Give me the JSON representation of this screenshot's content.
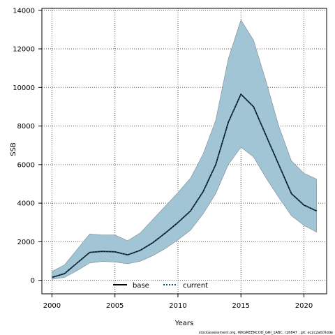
{
  "chart_data": {
    "type": "area",
    "xlabel": "Years",
    "ylabel": "SSB",
    "xlim": [
      1999.2,
      2021.8
    ],
    "ylim": [
      -700,
      14100
    ],
    "x_ticks": [
      2000,
      2005,
      2010,
      2015,
      2020
    ],
    "y_ticks": [
      0,
      2000,
      4000,
      6000,
      8000,
      10000,
      12000,
      14000
    ],
    "grid": true,
    "legend_position": "bottom-center",
    "colors": {
      "band_fill": "#a2c5d6",
      "band_stroke": "#7a8a90",
      "current_line": "#000000",
      "current_dot": "#1d4f6e",
      "base_line": "#000000",
      "grid": "#555555"
    },
    "x": [
      2000,
      2001,
      2002,
      2003,
      2004,
      2005,
      2006,
      2007,
      2008,
      2009,
      2010,
      2011,
      2012,
      2013,
      2014,
      2015,
      2016,
      2017,
      2018,
      2019,
      2020,
      2021
    ],
    "series": [
      {
        "name": "base",
        "style": "solid",
        "values": [
          150,
          350,
          900,
          1450,
          1500,
          1480,
          1320,
          1550,
          1950,
          2450,
          3000,
          3600,
          4600,
          6000,
          8200,
          9650,
          9000,
          7500,
          6000,
          4500,
          3900,
          3600
        ]
      },
      {
        "name": "current",
        "style": "dotted",
        "values": [
          150,
          350,
          900,
          1450,
          1500,
          1480,
          1320,
          1550,
          1950,
          2450,
          3000,
          3600,
          4600,
          6000,
          8200,
          9650,
          9000,
          7500,
          6000,
          4500,
          3900,
          3600
        ]
      }
    ],
    "band": {
      "upper": [
        450,
        800,
        1600,
        2400,
        2350,
        2350,
        2050,
        2450,
        3150,
        3850,
        4550,
        5300,
        6550,
        8300,
        11500,
        13500,
        12450,
        10300,
        8000,
        6200,
        5550,
        5250
      ],
      "lower": [
        50,
        150,
        500,
        900,
        980,
        950,
        860,
        990,
        1280,
        1650,
        2100,
        2600,
        3450,
        4500,
        6000,
        6900,
        6400,
        5300,
        4300,
        3350,
        2850,
        2500
      ]
    }
  },
  "legend": {
    "base_label": "base",
    "current_label": "current"
  },
  "axes": {
    "x_title": "Years",
    "y_title": "SSB",
    "x_tick_labels": [
      "2000",
      "2005",
      "2010",
      "2015",
      "2020"
    ],
    "y_tick_labels": [
      "0",
      "2000",
      "4000",
      "6000",
      "8000",
      "10000",
      "12000",
      "14000"
    ]
  },
  "footnote": "stockassessment.org, WKGREENCOD_GRI_1ABC, r16847 , git: ec2c2a0c6dde"
}
